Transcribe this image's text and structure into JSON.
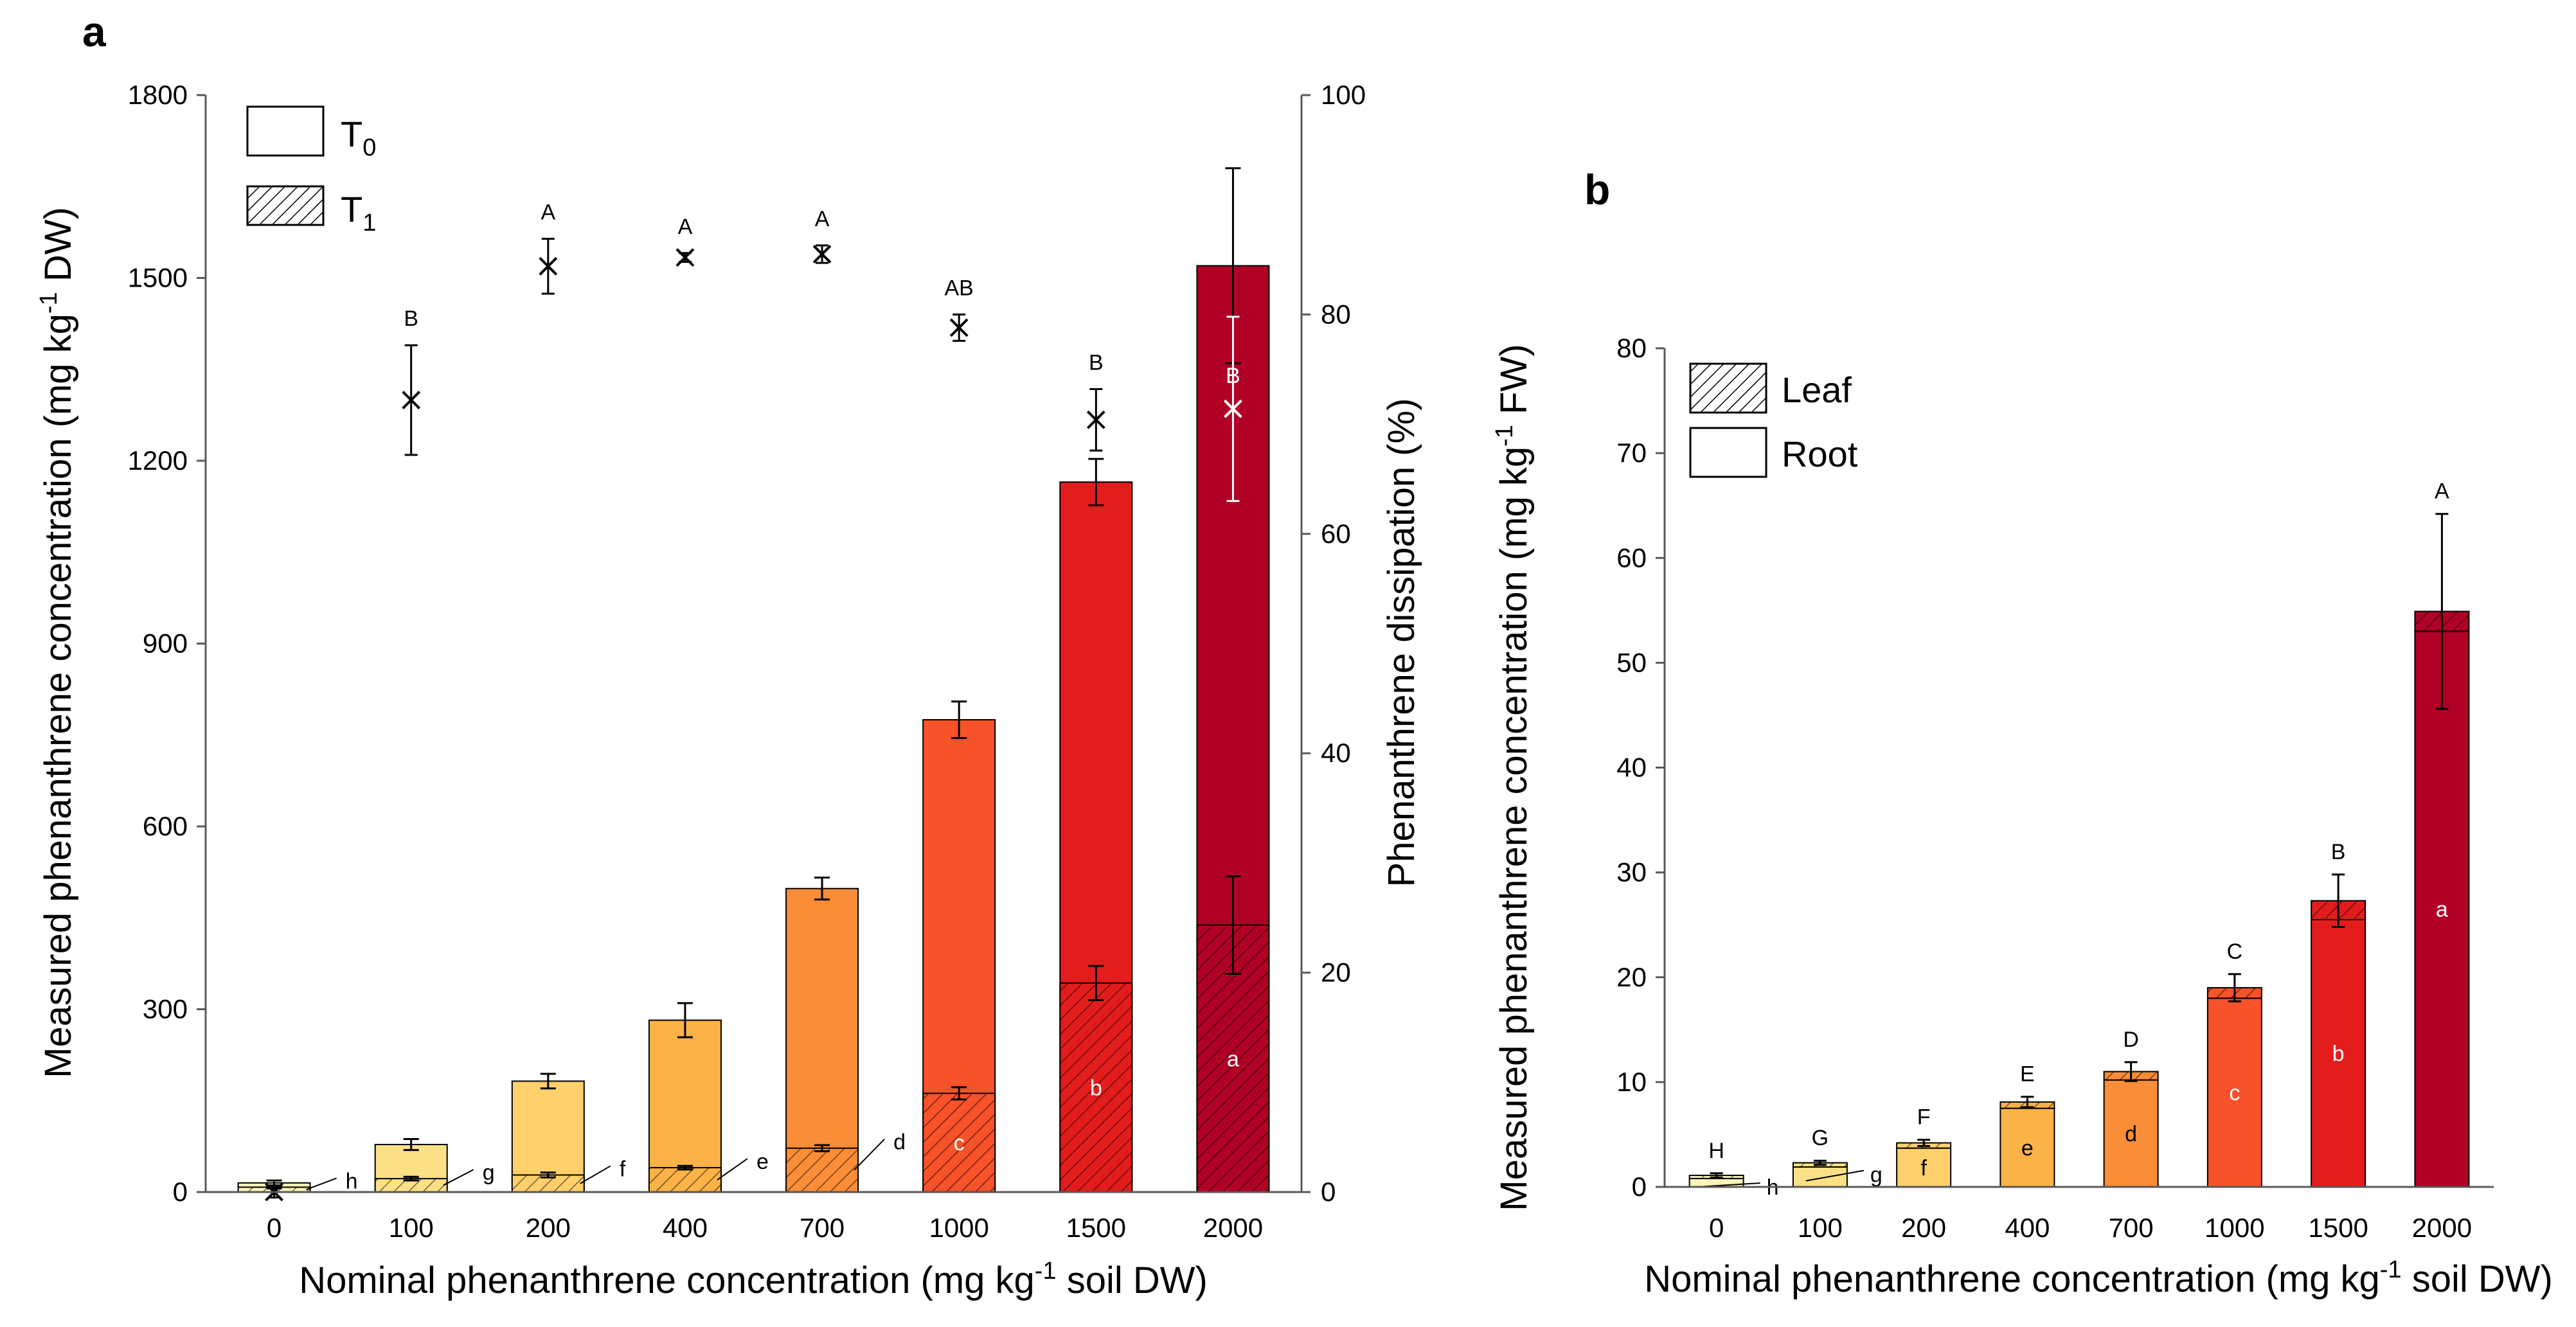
{
  "colors": {
    "0": "#FCF3B8",
    "100": "#FCE085",
    "200": "#FDD06C",
    "400": "#FBB246",
    "700": "#FA8D38",
    "1000": "#F7522A",
    "1500": "#E31D1C",
    "2000": "#B10026"
  },
  "chart_data": [
    {
      "panel": "a",
      "type": "bar",
      "stacking": "overlaid",
      "categories": [
        "0",
        "100",
        "200",
        "400",
        "700",
        "1000",
        "1500",
        "2000"
      ],
      "series": [
        {
          "name": "T0",
          "values": [
            15,
            78,
            182,
            282,
            498,
            775,
            1165,
            1520
          ],
          "errors": [
            4,
            9,
            12,
            28,
            18,
            30,
            38,
            160
          ]
        },
        {
          "name": "T1",
          "pattern": "hatched",
          "values": [
            8,
            22,
            28,
            40,
            72,
            162,
            343,
            438
          ],
          "errors": [
            2,
            3,
            4,
            3,
            5,
            10,
            28,
            80
          ]
        },
        {
          "name": "Phenanthrene dissipation (%)",
          "axis": "right",
          "marker": "x",
          "values": [
            0,
            72.2,
            84.4,
            85.2,
            85.5,
            78.8,
            70.4,
            71.4
          ],
          "errors": [
            0.5,
            5.0,
            2.5,
            0.4,
            0.8,
            1.2,
            2.8,
            8.4
          ]
        }
      ],
      "significance_upper": [
        "",
        "B",
        "A",
        "A",
        "A",
        "AB",
        "B",
        "B"
      ],
      "significance_lower": [
        "h",
        "g",
        "f",
        "e",
        "d",
        "c",
        "b",
        "a"
      ],
      "title": "a",
      "xlabel": "Nominal phenanthrene concentration (mg kg",
      "xlabel_sup": "-1",
      "xlabel_tail": " soil DW)",
      "ylabel": "Measured phenanthrene concentration (mg kg",
      "ylabel_sup": "-1",
      "ylabel_tail": " DW)",
      "ylim": [
        0,
        1800
      ],
      "yticks": [
        "0",
        "300",
        "600",
        "900",
        "1200",
        "1500",
        "1800"
      ],
      "y2label": "Phenanthrene dissipation (%)",
      "y2lim": [
        0,
        100
      ],
      "y2ticks": [
        "0",
        "20",
        "40",
        "60",
        "80",
        "100"
      ],
      "legend": [
        {
          "label": "T",
          "sub": "0",
          "pattern": "plain"
        },
        {
          "label": "T",
          "sub": "1",
          "pattern": "hatched"
        }
      ],
      "legend_position": "top-left"
    },
    {
      "panel": "b",
      "type": "bar",
      "stacking": "stacked",
      "categories": [
        "0",
        "100",
        "200",
        "400",
        "700",
        "1000",
        "1500",
        "2000"
      ],
      "series": [
        {
          "name": "Root",
          "values": [
            0.8,
            1.9,
            3.7,
            7.5,
            10.2,
            18.0,
            25.5,
            53.0
          ]
        },
        {
          "name": "Leaf",
          "pattern": "hatched",
          "values": [
            0.3,
            0.4,
            0.5,
            0.6,
            0.8,
            1.0,
            1.8,
            1.9
          ]
        }
      ],
      "errors": [
        0.2,
        0.2,
        0.3,
        0.5,
        0.9,
        1.3,
        2.5,
        9.3
      ],
      "significance_upper": [
        "H",
        "G",
        "F",
        "E",
        "D",
        "C",
        "B",
        "A"
      ],
      "significance_lower": [
        "h",
        "g",
        "f",
        "e",
        "d",
        "c",
        "b",
        "a"
      ],
      "title": "b",
      "xlabel": "Nominal phenanthrene concentration (mg kg",
      "xlabel_sup": "-1",
      "xlabel_tail": " soil DW)",
      "ylabel": "Measured phenanthrene concentration (mg kg",
      "ylabel_sup": "-1",
      "ylabel_tail": " FW)",
      "ylim": [
        0,
        80
      ],
      "yticks": [
        "0",
        "10",
        "20",
        "30",
        "40",
        "50",
        "60",
        "70",
        "80"
      ],
      "legend": [
        {
          "label": "Leaf",
          "pattern": "hatched"
        },
        {
          "label": "Root",
          "pattern": "plain"
        }
      ],
      "legend_position": "top-left"
    }
  ]
}
